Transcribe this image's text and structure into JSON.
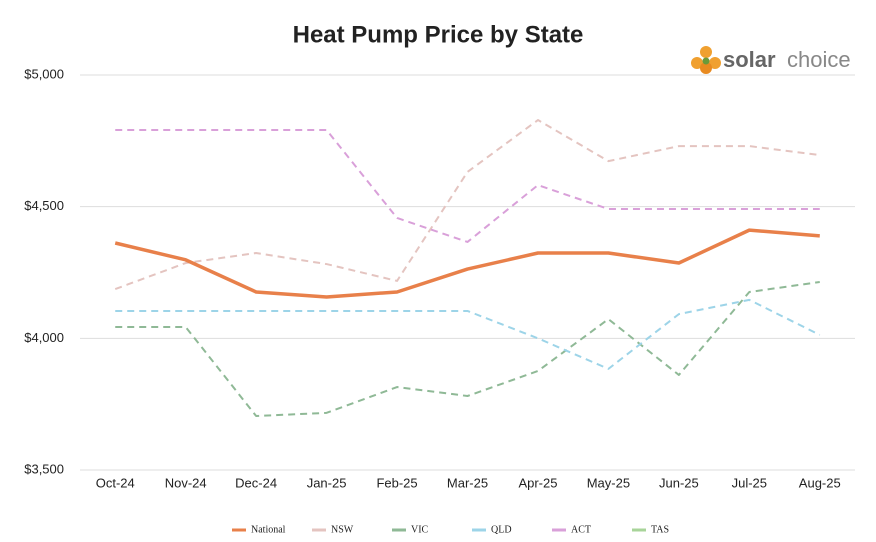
{
  "chart_data": {
    "type": "line",
    "title": "Heat Pump Price by State",
    "categories": [
      "Oct-24",
      "Nov-24",
      "Dec-24",
      "Jan-25",
      "Feb-25",
      "Mar-25",
      "Apr-25",
      "May-25",
      "Jun-25",
      "Jul-25",
      "Aug-25"
    ],
    "series": [
      {
        "name": "National",
        "color": "#e8804a",
        "dashed": false,
        "values": [
          4362,
          4298,
          4176,
          4157,
          4176,
          4263,
          4324,
          4324,
          4286,
          4411,
          4389
        ]
      },
      {
        "name": "NSW",
        "color": "#e4c4c0",
        "dashed": true,
        "values": [
          4187,
          4286,
          4324,
          4282,
          4218,
          4632,
          4829,
          4673,
          4730,
          4730,
          4696
        ]
      },
      {
        "name": "VIC",
        "color": "#8fb996",
        "dashed": true,
        "values": [
          4043,
          4043,
          3705,
          3717,
          3815,
          3781,
          3876,
          4073,
          3861,
          4176,
          4214
        ]
      },
      {
        "name": "QLD",
        "color": "#9dd4e8",
        "dashed": true,
        "values": [
          4104,
          4104,
          4104,
          4104,
          4104,
          4104,
          4000,
          3884,
          4092,
          4146,
          4013
        ]
      },
      {
        "name": "ACT",
        "color": "#d9a0d9",
        "dashed": true,
        "values": [
          4791,
          4791,
          4791,
          4791,
          4457,
          4366,
          4582,
          4491,
          4491,
          4491,
          4491
        ]
      },
      {
        "name": "TAS",
        "color": "#a8d49a",
        "dashed": true,
        "values": [
          null,
          null,
          null,
          null,
          null,
          null,
          null,
          null,
          null,
          null,
          null
        ]
      }
    ],
    "ylim": [
      3500,
      5000
    ],
    "yticks": [
      {
        "value": 3500,
        "label": "$3,500"
      },
      {
        "value": 4000,
        "label": "$4,000"
      },
      {
        "value": 4500,
        "label": "$4,500"
      },
      {
        "value": 5000,
        "label": "$5,000"
      }
    ],
    "grid": true,
    "legend": "bottom"
  },
  "logo": {
    "word1": "solar",
    "word2": "choice"
  }
}
